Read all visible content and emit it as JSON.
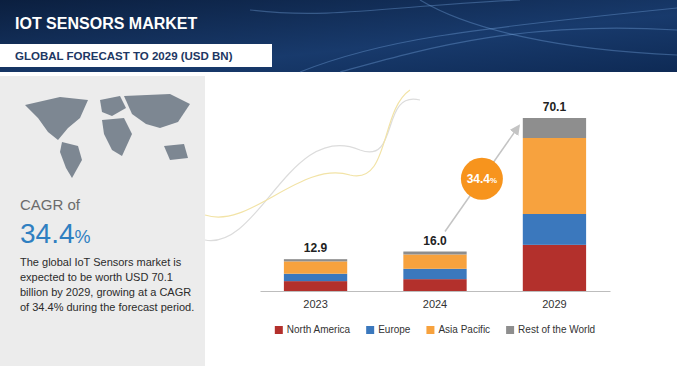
{
  "chart_data": {
    "type": "bar",
    "title": "IOT SENSORS MARKET",
    "subtitle": "GLOBAL FORECAST TO 2029 (USD BN)",
    "categories": [
      "2023",
      "2024",
      "2029"
    ],
    "series": [
      {
        "name": "North America",
        "color": "#b3302c",
        "values": [
          4.0,
          4.8,
          18.7
        ]
      },
      {
        "name": "Europe",
        "color": "#3b78bd",
        "values": [
          3.0,
          4.2,
          12.5
        ]
      },
      {
        "name": "Asia Pacific",
        "color": "#f7a23e",
        "values": [
          5.0,
          5.8,
          30.8
        ]
      },
      {
        "name": "Rest of the World",
        "color": "#8e8e8e",
        "values": [
          0.9,
          1.2,
          8.1
        ]
      }
    ],
    "totals": [
      12.9,
      16,
      70.1
    ],
    "total_labels": [
      "12.9",
      "16.0",
      "70.1"
    ],
    "annotations": [
      "CAGR of",
      "34.4%",
      "The global IoT Sensors market is expected to be worth USD 70.1 billion by 2029, growing at a CAGR of 34.4% during the forecast period.",
      "34.4%"
    ],
    "stacked": true,
    "legend": "bottom",
    "tick_labels": "x",
    "grid": false
  }
}
